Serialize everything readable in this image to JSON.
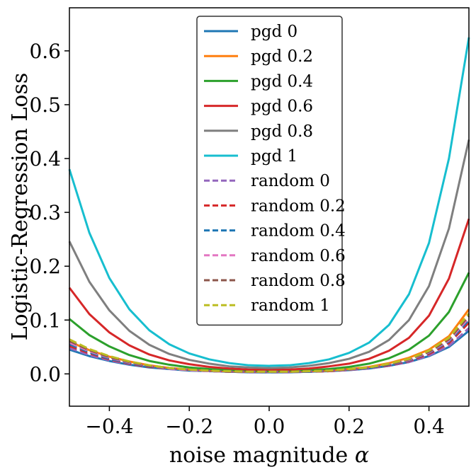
{
  "chart_data": {
    "type": "line",
    "xlabel": "noise magnitude",
    "xlabel_symbol": "α",
    "ylabel": "Logistic-Regression Loss",
    "xlim": [
      -0.5,
      0.5
    ],
    "ylim": [
      -0.06,
      0.68
    ],
    "xticks": [
      -0.4,
      -0.2,
      0.0,
      0.2,
      0.4
    ],
    "xtick_labels": [
      "−0.4",
      "−0.2",
      "0.0",
      "0.2",
      "0.4"
    ],
    "yticks": [
      0.0,
      0.1,
      0.2,
      0.3,
      0.4,
      0.5,
      0.6
    ],
    "ytick_labels": [
      "0.0",
      "0.1",
      "0.2",
      "0.3",
      "0.4",
      "0.5",
      "0.6"
    ],
    "grid": false,
    "legend_position": "top-center",
    "x": [
      -0.5,
      -0.45,
      -0.4,
      -0.35,
      -0.3,
      -0.25,
      -0.2,
      -0.15,
      -0.1,
      -0.05,
      0.0,
      0.05,
      0.1,
      0.15,
      0.2,
      0.25,
      0.3,
      0.35,
      0.4,
      0.45,
      0.5
    ],
    "series": [
      {
        "name": "pgd 0",
        "color": "#1f77b4",
        "dash": false,
        "values": [
          0.045,
          0.033,
          0.024,
          0.017,
          0.012,
          0.009,
          0.006,
          0.005,
          0.004,
          0.003,
          0.003,
          0.003,
          0.004,
          0.005,
          0.007,
          0.01,
          0.015,
          0.022,
          0.033,
          0.05,
          0.08
        ]
      },
      {
        "name": "pgd 0.2",
        "color": "#ff7f0e",
        "dash": false,
        "values": [
          0.06,
          0.044,
          0.032,
          0.023,
          0.016,
          0.011,
          0.008,
          0.006,
          0.005,
          0.004,
          0.004,
          0.004,
          0.005,
          0.006,
          0.009,
          0.013,
          0.02,
          0.03,
          0.045,
          0.07,
          0.12
        ]
      },
      {
        "name": "pgd 0.4",
        "color": "#2ca02c",
        "dash": false,
        "values": [
          0.102,
          0.072,
          0.051,
          0.035,
          0.024,
          0.017,
          0.012,
          0.009,
          0.007,
          0.006,
          0.005,
          0.006,
          0.007,
          0.009,
          0.013,
          0.019,
          0.029,
          0.045,
          0.071,
          0.115,
          0.188
        ]
      },
      {
        "name": "pgd 0.6",
        "color": "#d62728",
        "dash": false,
        "values": [
          0.16,
          0.111,
          0.077,
          0.053,
          0.036,
          0.025,
          0.018,
          0.013,
          0.01,
          0.008,
          0.008,
          0.008,
          0.01,
          0.014,
          0.019,
          0.028,
          0.043,
          0.067,
          0.108,
          0.177,
          0.288
        ]
      },
      {
        "name": "pgd 0.8",
        "color": "#7f7f7f",
        "dash": false,
        "values": [
          0.246,
          0.171,
          0.118,
          0.08,
          0.054,
          0.037,
          0.026,
          0.019,
          0.014,
          0.012,
          0.011,
          0.012,
          0.015,
          0.02,
          0.028,
          0.041,
          0.063,
          0.1,
          0.163,
          0.27,
          0.435
        ]
      },
      {
        "name": "pgd 1",
        "color": "#17becf",
        "dash": false,
        "values": [
          0.38,
          0.262,
          0.178,
          0.12,
          0.081,
          0.055,
          0.038,
          0.027,
          0.02,
          0.016,
          0.015,
          0.016,
          0.02,
          0.027,
          0.039,
          0.058,
          0.091,
          0.148,
          0.243,
          0.4,
          0.625
        ]
      },
      {
        "name": "random 0",
        "color": "#9467bd",
        "dash": true,
        "values": [
          0.048,
          0.035,
          0.025,
          0.018,
          0.013,
          0.009,
          0.007,
          0.005,
          0.004,
          0.003,
          0.003,
          0.003,
          0.004,
          0.005,
          0.007,
          0.01,
          0.015,
          0.022,
          0.034,
          0.052,
          0.085
        ]
      },
      {
        "name": "random 0.2",
        "color": "#d62728",
        "dash": true,
        "values": [
          0.052,
          0.038,
          0.027,
          0.019,
          0.013,
          0.01,
          0.007,
          0.005,
          0.004,
          0.004,
          0.003,
          0.004,
          0.004,
          0.005,
          0.008,
          0.011,
          0.016,
          0.024,
          0.037,
          0.057,
          0.095
        ]
      },
      {
        "name": "random 0.4",
        "color": "#1f77b4",
        "dash": true,
        "values": [
          0.055,
          0.04,
          0.028,
          0.02,
          0.014,
          0.01,
          0.007,
          0.005,
          0.004,
          0.004,
          0.003,
          0.004,
          0.004,
          0.006,
          0.008,
          0.011,
          0.017,
          0.025,
          0.039,
          0.06,
          0.1
        ]
      },
      {
        "name": "random 0.6",
        "color": "#e377c2",
        "dash": true,
        "values": [
          0.058,
          0.042,
          0.03,
          0.021,
          0.015,
          0.01,
          0.007,
          0.005,
          0.004,
          0.004,
          0.004,
          0.004,
          0.005,
          0.006,
          0.008,
          0.012,
          0.018,
          0.026,
          0.04,
          0.062,
          0.104
        ]
      },
      {
        "name": "random 0.8",
        "color": "#8c564b",
        "dash": true,
        "values": [
          0.061,
          0.044,
          0.031,
          0.022,
          0.015,
          0.011,
          0.008,
          0.006,
          0.004,
          0.004,
          0.004,
          0.004,
          0.005,
          0.006,
          0.008,
          0.012,
          0.018,
          0.027,
          0.041,
          0.064,
          0.108
        ]
      },
      {
        "name": "random 1",
        "color": "#bcbd22",
        "dash": true,
        "values": [
          0.064,
          0.046,
          0.033,
          0.023,
          0.016,
          0.011,
          0.008,
          0.006,
          0.005,
          0.004,
          0.004,
          0.004,
          0.005,
          0.006,
          0.009,
          0.012,
          0.019,
          0.028,
          0.043,
          0.067,
          0.112
        ]
      }
    ]
  }
}
